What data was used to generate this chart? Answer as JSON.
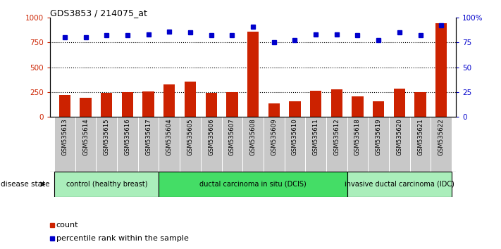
{
  "title": "GDS3853 / 214075_at",
  "samples": [
    "GSM535613",
    "GSM535614",
    "GSM535615",
    "GSM535616",
    "GSM535617",
    "GSM535604",
    "GSM535605",
    "GSM535606",
    "GSM535607",
    "GSM535608",
    "GSM535609",
    "GSM535610",
    "GSM535611",
    "GSM535612",
    "GSM535618",
    "GSM535619",
    "GSM535620",
    "GSM535621",
    "GSM535622"
  ],
  "counts": [
    220,
    195,
    245,
    250,
    260,
    325,
    355,
    245,
    250,
    860,
    140,
    155,
    265,
    280,
    205,
    155,
    285,
    250,
    940
  ],
  "percentiles": [
    80,
    80,
    82,
    82,
    83,
    86,
    85,
    82,
    82,
    91,
    75,
    77,
    83,
    83,
    82,
    77,
    85,
    82,
    92
  ],
  "groups": [
    {
      "label": "control (healthy breast)",
      "start": 0,
      "end": 5,
      "color": "#AAEEBB"
    },
    {
      "label": "ductal carcinoma in situ (DCIS)",
      "start": 5,
      "end": 14,
      "color": "#44DD66"
    },
    {
      "label": "invasive ductal carcinoma (IDC)",
      "start": 14,
      "end": 19,
      "color": "#AAEEBB"
    }
  ],
  "bar_color": "#CC2200",
  "dot_color": "#0000CC",
  "ylim_left": [
    0,
    1000
  ],
  "ylim_right": [
    0,
    100
  ],
  "yticks_left": [
    0,
    250,
    500,
    750,
    1000
  ],
  "yticks_right": [
    0,
    25,
    50,
    75,
    100
  ],
  "ytick_labels_left": [
    "0",
    "250",
    "500",
    "750",
    "1000"
  ],
  "ytick_labels_right": [
    "0",
    "25",
    "50",
    "75",
    "100%"
  ],
  "grid_values": [
    250,
    500,
    750
  ],
  "legend_count_label": "count",
  "legend_pct_label": "percentile rank within the sample",
  "disease_state_label": "disease state",
  "tick_bg_color": "#C8C8C8",
  "plot_bg_color": "#FFFFFF"
}
